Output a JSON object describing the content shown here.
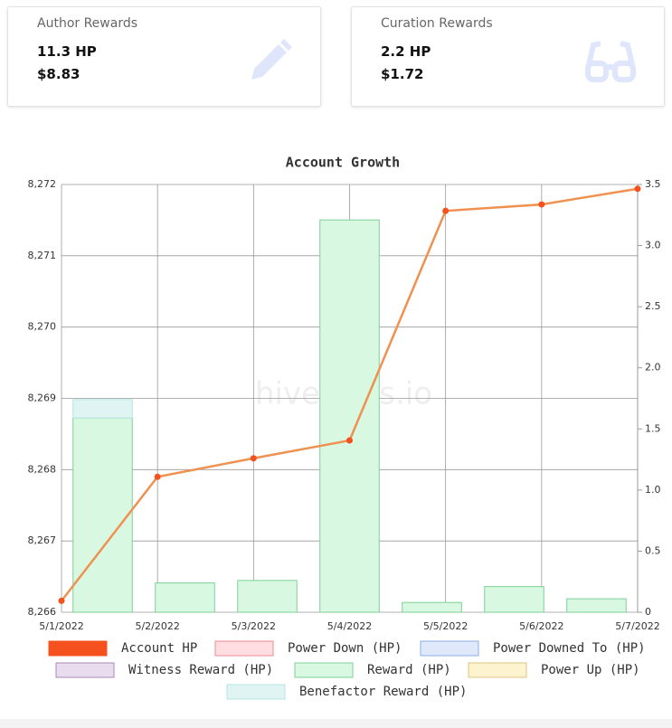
{
  "cards": [
    {
      "title": "Author Rewards",
      "hp": "11.3 HP",
      "usd": "$8.83"
    },
    {
      "title": "Curation Rewards",
      "hp": "2.2 HP",
      "usd": "$1.72"
    }
  ],
  "chart_data": {
    "type": "combo",
    "title": "Account Growth",
    "watermark": "hivestats.io",
    "categories": [
      "5/1/2022",
      "5/2/2022",
      "5/3/2022",
      "5/4/2022",
      "5/5/2022",
      "5/6/2022",
      "5/7/2022"
    ],
    "ylim": [
      8266,
      8272
    ],
    "yticks": [
      {
        "value": 8266,
        "label": "8,266"
      },
      {
        "value": 8267,
        "label": "8,267"
      },
      {
        "value": 8268,
        "label": "8,268"
      },
      {
        "value": 8269,
        "label": "8,269"
      },
      {
        "value": 8270,
        "label": "8,270"
      },
      {
        "value": 8271,
        "label": "8,271"
      },
      {
        "value": 8272,
        "label": "8,272"
      }
    ],
    "y2lim": [
      0,
      3.5
    ],
    "y2ticks": [
      0,
      0.5,
      {
        "value": 1,
        "label": "1.0"
      },
      1.5,
      {
        "value": 2,
        "label": "2.0"
      },
      2.5,
      {
        "value": 3,
        "label": "3.0"
      },
      3.5
    ],
    "grid": true,
    "series": [
      {
        "name": "Account HP",
        "type": "line",
        "axis": "y",
        "color": "#f4511e",
        "line_color": "#ef9150",
        "values": [
          8266.16,
          8267.9,
          8268.16,
          8268.41,
          8271.63,
          8271.72,
          8271.94
        ]
      },
      {
        "name": "Power Down (HP)",
        "type": "bar",
        "axis": "y2",
        "color": "#ffdde0",
        "border": "#e88a94",
        "values": [
          0,
          0,
          0,
          0,
          0,
          0,
          0
        ]
      },
      {
        "name": "Power Downed To (HP)",
        "type": "bar",
        "axis": "y2",
        "color": "#dfe9fb",
        "border": "#8eaee0",
        "values": [
          0,
          0,
          0,
          0,
          0,
          0,
          0
        ]
      },
      {
        "name": "Witness Reward (HP)",
        "type": "bar",
        "axis": "y2",
        "color": "#e9dcee",
        "border": "#a98ab4",
        "values": [
          0,
          0,
          0,
          0,
          0,
          0,
          0
        ]
      },
      {
        "name": "Reward (HP)",
        "type": "bar",
        "axis": "y2",
        "color": "#d8f8e2",
        "border": "#7fcf98",
        "values": [
          1.59,
          0.24,
          0.26,
          3.21,
          0.08,
          0.21,
          0.11
        ]
      },
      {
        "name": "Power Up (HP)",
        "type": "bar",
        "axis": "y2",
        "color": "#fdf3cf",
        "border": "#dcc480",
        "values": [
          0,
          0,
          0,
          0,
          0,
          0,
          0
        ]
      },
      {
        "name": "Benefactor Reward (HP)",
        "type": "bar",
        "axis": "y2",
        "color": "#dff4f3",
        "border": "#b4e6e2",
        "values": [
          0.15,
          0,
          0,
          0,
          0,
          0,
          0
        ]
      }
    ]
  }
}
